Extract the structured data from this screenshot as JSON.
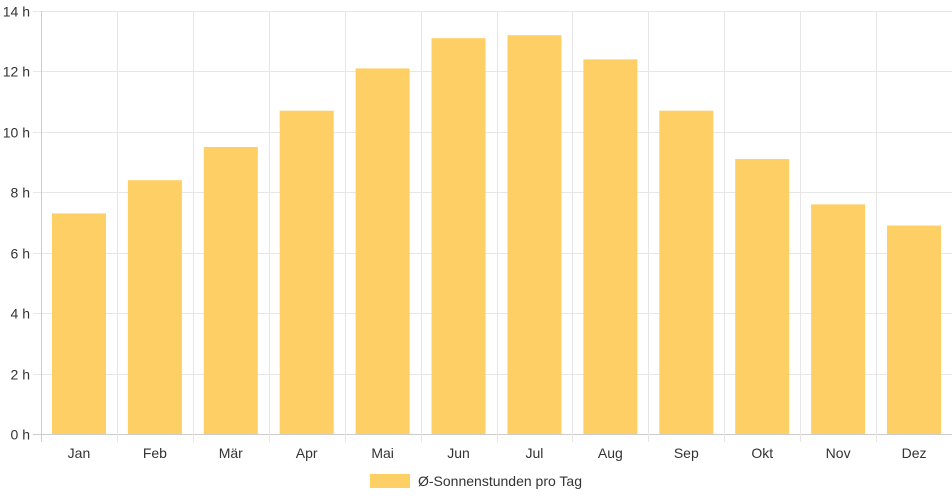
{
  "chart_data": {
    "type": "bar",
    "categories": [
      "Jan",
      "Feb",
      "Mär",
      "Apr",
      "Mai",
      "Jun",
      "Jul",
      "Aug",
      "Sep",
      "Okt",
      "Nov",
      "Dez"
    ],
    "series": [
      {
        "name": "Ø-Sonnenstunden pro Tag",
        "values": [
          7.3,
          8.4,
          9.5,
          10.7,
          12.1,
          13.1,
          13.2,
          12.4,
          10.7,
          9.1,
          7.6,
          6.9
        ],
        "color": "#fdcf65"
      }
    ],
    "ylim": [
      0,
      14
    ],
    "yticks": [
      0,
      2,
      4,
      6,
      8,
      10,
      12,
      14
    ],
    "ytick_suffix": " h",
    "grid": true,
    "legend_position": "bottom"
  }
}
